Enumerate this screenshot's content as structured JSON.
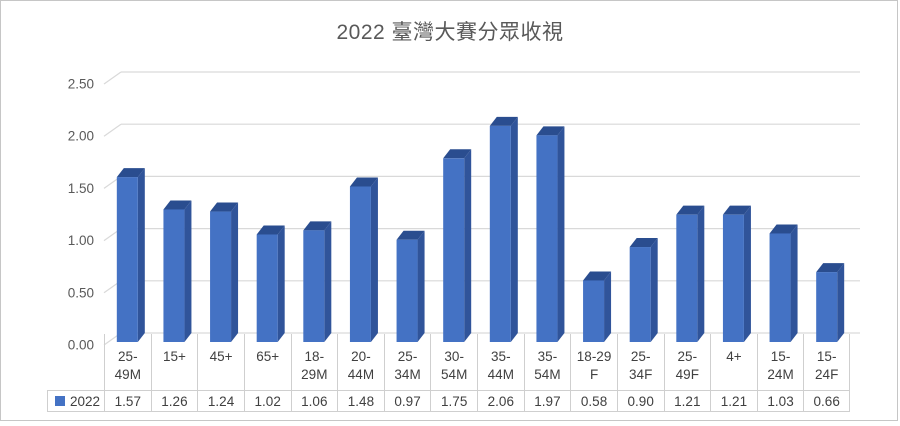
{
  "window": {
    "background": "#ffffff",
    "border_color": "#c6c6c6"
  },
  "chart_data": {
    "type": "bar",
    "projection": "3d-column",
    "title": "2022 臺灣大賽分眾收視",
    "categories": [
      "25-49M",
      "15+",
      "45+",
      "65+",
      "18-29M",
      "20-44M",
      "25-34M",
      "30-54M",
      "35-44M",
      "35-54M",
      "18-29F",
      "25-34F",
      "25-49F",
      "4+",
      "15-24M",
      "15-24F"
    ],
    "category_labels_wrapped": [
      "25-\n49M",
      "15+",
      "45+",
      "65+",
      "18-\n29M",
      "20-\n44M",
      "25-\n34M",
      "30-\n54M",
      "35-\n44M",
      "35-\n54M",
      "18-29\nF",
      "25-\n34F",
      "25-\n49F",
      "4+",
      "15-\n24M",
      "15-\n24F"
    ],
    "series": [
      {
        "name": "2022",
        "values": [
          1.57,
          1.26,
          1.24,
          1.02,
          1.06,
          1.48,
          0.97,
          1.75,
          2.06,
          1.97,
          0.58,
          0.9,
          1.21,
          1.21,
          1.03,
          0.66
        ]
      }
    ],
    "value_decimals": 2,
    "ylim": [
      0,
      2.5
    ],
    "yticks": [
      0,
      0.5,
      1,
      1.5,
      2,
      2.5
    ],
    "ytick_labels": [
      "0.00",
      "0.50",
      "1.00",
      "1.50",
      "2.00",
      "2.50"
    ],
    "grid": true,
    "legend_position": "data-table-left",
    "xlabel": "",
    "ylabel": "",
    "colors": {
      "bar_front": "#4472c4",
      "bar_side": "#30549a",
      "bar_top": "#2a4d8f",
      "gridline": "#d9d9d9",
      "axis_text": "#595959",
      "table_border": "#cfcfcf",
      "table_text": "#404040",
      "title_text": "#595959",
      "legend_swatch": "#4472c4"
    }
  }
}
